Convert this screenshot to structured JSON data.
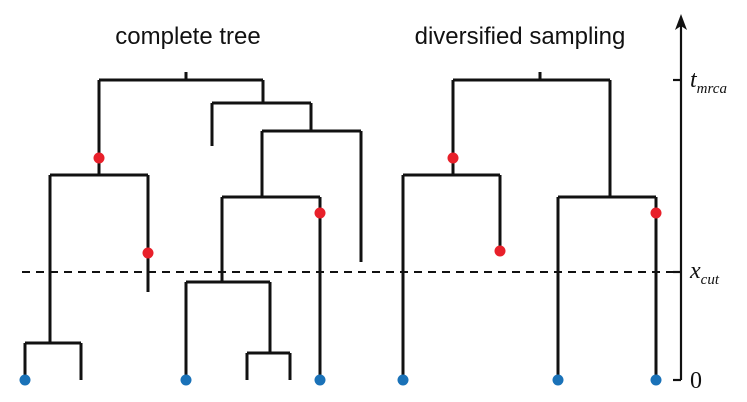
{
  "titles": {
    "left": "complete tree",
    "right": "diversified sampling"
  },
  "axis": {
    "t_mrca": {
      "main": "t",
      "sub": "mrca"
    },
    "x_cut": {
      "main": "x",
      "sub": "cut"
    },
    "zero": "0"
  },
  "colors": {
    "branch": "#111111",
    "red_node": "#e8202a",
    "blue_tip": "#1a72b8"
  }
}
